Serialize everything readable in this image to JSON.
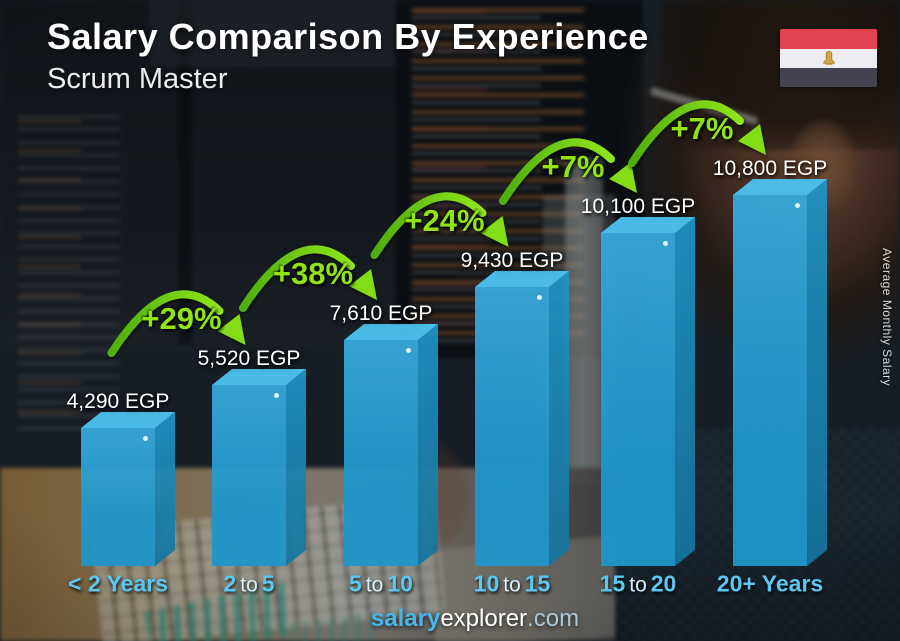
{
  "header": {
    "title": "Salary Comparison By Experience",
    "subtitle": "Scrum Master"
  },
  "side_label": "Average Monthly Salary",
  "flag": {
    "name": "egypt-flag",
    "stripe_red": "#E24350",
    "stripe_white": "#ECECF2",
    "stripe_black": "#42434F",
    "eagle_gold": "#D5A43C"
  },
  "footer": {
    "bold": "salary",
    "regular": "explorer",
    "suffix": ".com"
  },
  "chart_data": {
    "type": "bar",
    "title": "Salary Comparison By Experience",
    "subtitle": "Scrum Master",
    "unit": "EGP",
    "ylabel": "Average Monthly Salary",
    "categories": [
      "< 2 Years",
      "2 to 5",
      "5 to 10",
      "10 to 15",
      "15 to 20",
      "20+ Years"
    ],
    "values": [
      4290,
      5520,
      7610,
      9430,
      10100,
      10800
    ],
    "value_labels": [
      "4,290 EGP",
      "5,520 EGP",
      "7,610 EGP",
      "9,430 EGP",
      "10,100 EGP",
      "10,800 EGP"
    ],
    "increases": [
      "+29%",
      "+38%",
      "+24%",
      "+7%",
      "+7%"
    ],
    "bar_color": "#219FD7",
    "bar_top_color": "#4CC2EE",
    "bar_side_color": "#14749F",
    "increase_color": "#8FE412",
    "label_color": "#FFFFFF",
    "category_color": "#5CC7F2"
  }
}
